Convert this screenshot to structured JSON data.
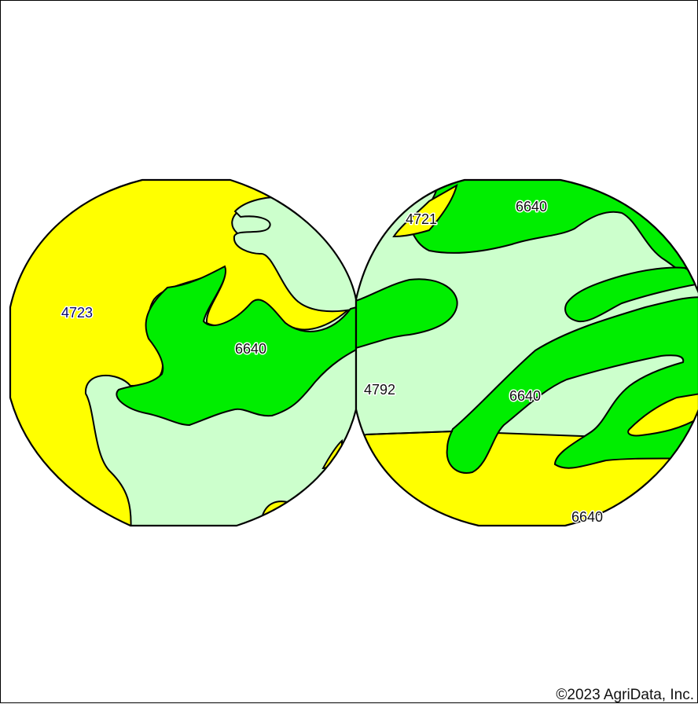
{
  "map": {
    "colors": {
      "yellow": "#ffff00",
      "light_green": "#ccffcc",
      "green": "#00ee00",
      "outline": "#000000"
    },
    "labels": {
      "l4723": "4723",
      "l6640_left": "6640",
      "l4721": "4721",
      "l6640_top": "6640",
      "l4792": "4792",
      "l6640_mid": "6640",
      "l6640_bottom": "6640"
    },
    "copyright": "©2023 AgriData, Inc."
  }
}
